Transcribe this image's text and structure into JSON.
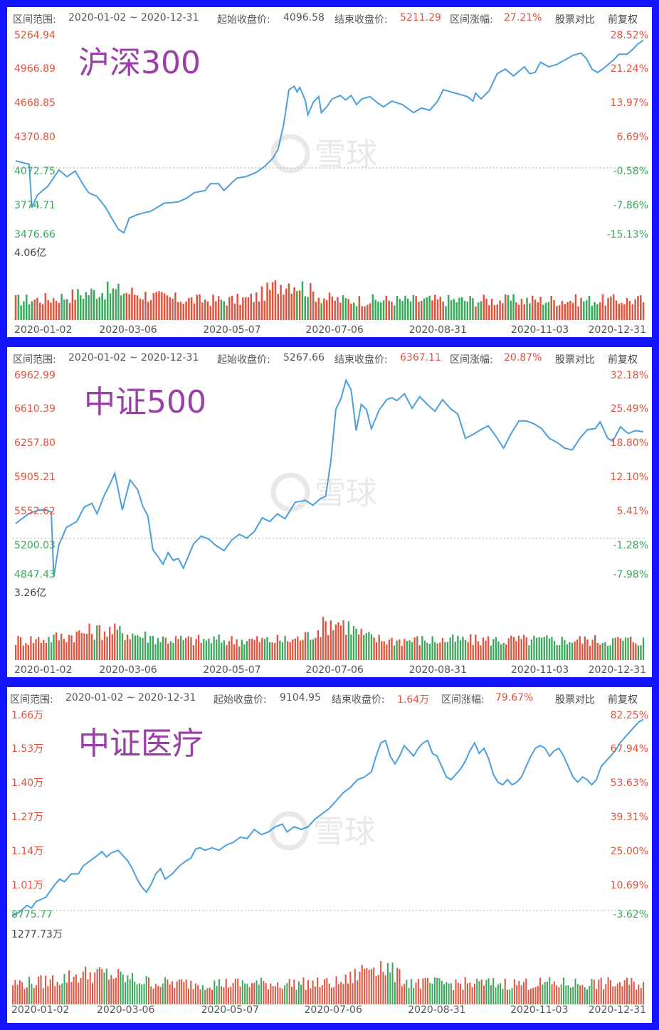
{
  "colors": {
    "up": "#e0533d",
    "down": "#3aa85a",
    "line": "#4a9fdf",
    "title": "#9b3fa8",
    "frame": "#1414ff",
    "label_gray": "#555555"
  },
  "header_labels": {
    "range": "区间范围:",
    "start": "起始收盘价:",
    "end": "结束收盘价:",
    "change": "区间涨幅:",
    "compare": "股票对比",
    "adjust": "前复权"
  },
  "watermark": "雪球",
  "chart_data": [
    {
      "type": "line",
      "title": "沪深300",
      "range": "2020-01-02 ~ 2020-12-31",
      "start_close": "4096.58",
      "end_close": "5211.29",
      "change": "27.21%",
      "y_ticks": [
        "5264.94",
        "4966.89",
        "4668.85",
        "4370.80",
        "4072.75",
        "3774.71",
        "3476.66"
      ],
      "y_ticks_right": [
        "28.52%",
        "21.24%",
        "13.97%",
        "6.69%",
        "-0.58%",
        "-7.86%",
        "-15.13%"
      ],
      "ylim": [
        3476.66,
        5264.94
      ],
      "base": 4096.58,
      "volume_max_label": "4.06亿",
      "x_ticks": [
        "2020-01-02",
        "2020-03-06",
        "2020-05-07",
        "2020-07-06",
        "2020-08-31",
        "2020-11-03",
        "2020-12-31"
      ],
      "keypoints": [
        [
          0,
          4160
        ],
        [
          3,
          4140
        ],
        [
          5,
          4130
        ],
        [
          6,
          3750
        ],
        [
          8,
          3860
        ],
        [
          12,
          3940
        ],
        [
          16,
          4080
        ],
        [
          19,
          4020
        ],
        [
          22,
          4070
        ],
        [
          25,
          3950
        ],
        [
          27,
          3880
        ],
        [
          30,
          3850
        ],
        [
          33,
          3760
        ],
        [
          36,
          3640
        ],
        [
          38,
          3560
        ],
        [
          40,
          3530
        ],
        [
          42,
          3660
        ],
        [
          45,
          3690
        ],
        [
          50,
          3720
        ],
        [
          55,
          3790
        ],
        [
          60,
          3800
        ],
        [
          63,
          3830
        ],
        [
          66,
          3880
        ],
        [
          70,
          3900
        ],
        [
          72,
          3960
        ],
        [
          75,
          3960
        ],
        [
          77,
          3900
        ],
        [
          80,
          3970
        ],
        [
          82,
          4010
        ],
        [
          85,
          4020
        ],
        [
          89,
          4060
        ],
        [
          92,
          4110
        ],
        [
          95,
          4180
        ],
        [
          97,
          4260
        ],
        [
          99,
          4470
        ],
        [
          101,
          4780
        ],
        [
          103,
          4810
        ],
        [
          104,
          4760
        ],
        [
          105,
          4800
        ],
        [
          107,
          4690
        ],
        [
          108,
          4560
        ],
        [
          110,
          4670
        ],
        [
          112,
          4720
        ],
        [
          113,
          4580
        ],
        [
          115,
          4630
        ],
        [
          117,
          4700
        ],
        [
          120,
          4730
        ],
        [
          122,
          4690
        ],
        [
          124,
          4730
        ],
        [
          126,
          4650
        ],
        [
          128,
          4700
        ],
        [
          131,
          4720
        ],
        [
          134,
          4660
        ],
        [
          136,
          4630
        ],
        [
          139,
          4680
        ],
        [
          143,
          4650
        ],
        [
          147,
          4580
        ],
        [
          150,
          4620
        ],
        [
          153,
          4600
        ],
        [
          156,
          4680
        ],
        [
          158,
          4780
        ],
        [
          161,
          4760
        ],
        [
          164,
          4740
        ],
        [
          167,
          4720
        ],
        [
          169,
          4680
        ],
        [
          170,
          4750
        ],
        [
          172,
          4700
        ],
        [
          175,
          4770
        ],
        [
          178,
          4920
        ],
        [
          181,
          4960
        ],
        [
          184,
          4900
        ],
        [
          186,
          4940
        ],
        [
          188,
          4980
        ],
        [
          190,
          4920
        ],
        [
          192,
          4930
        ],
        [
          194,
          5020
        ],
        [
          197,
          4980
        ],
        [
          200,
          5000
        ],
        [
          203,
          5040
        ],
        [
          206,
          5080
        ],
        [
          209,
          5100
        ],
        [
          211,
          5050
        ],
        [
          213,
          4960
        ],
        [
          215,
          4930
        ],
        [
          217,
          4960
        ],
        [
          219,
          5000
        ],
        [
          221,
          5040
        ],
        [
          223,
          5090
        ],
        [
          226,
          5090
        ],
        [
          228,
          5130
        ],
        [
          230,
          5180
        ],
        [
          232,
          5211.29
        ]
      ]
    },
    {
      "type": "line",
      "title": "中证500",
      "range": "2020-01-02 ~ 2020-12-31",
      "start_close": "5267.66",
      "end_close": "6367.11",
      "change": "20.87%",
      "y_ticks": [
        "6962.99",
        "6610.39",
        "6257.80",
        "5905.21",
        "5552.62",
        "5200.03",
        "4847.43"
      ],
      "y_ticks_right": [
        "32.18%",
        "25.49%",
        "18.80%",
        "12.10%",
        "5.41%",
        "-1.28%",
        "-7.98%"
      ],
      "ylim": [
        4847.43,
        6962.99
      ],
      "base": 5267.66,
      "volume_max_label": "3.26亿",
      "x_ticks": [
        "2020-01-02",
        "2020-03-06",
        "2020-05-07",
        "2020-07-06",
        "2020-08-31",
        "2020-11-03",
        "2020-12-31"
      ],
      "keypoints": [
        [
          0,
          5420
        ],
        [
          3,
          5480
        ],
        [
          5,
          5520
        ],
        [
          6,
          5530
        ],
        [
          9,
          5560
        ],
        [
          12,
          5560
        ],
        [
          14,
          5540
        ],
        [
          15,
          4870
        ],
        [
          17,
          5200
        ],
        [
          20,
          5380
        ],
        [
          24,
          5440
        ],
        [
          27,
          5590
        ],
        [
          30,
          5630
        ],
        [
          32,
          5520
        ],
        [
          35,
          5720
        ],
        [
          37,
          5820
        ],
        [
          39,
          5940
        ],
        [
          42,
          5560
        ],
        [
          45,
          5870
        ],
        [
          48,
          5770
        ],
        [
          50,
          5600
        ],
        [
          52,
          5500
        ],
        [
          54,
          5150
        ],
        [
          56,
          5080
        ],
        [
          58,
          5000
        ],
        [
          60,
          5120
        ],
        [
          62,
          5040
        ],
        [
          64,
          5060
        ],
        [
          66,
          4960
        ],
        [
          70,
          5210
        ],
        [
          73,
          5290
        ],
        [
          76,
          5260
        ],
        [
          79,
          5190
        ],
        [
          82,
          5140
        ],
        [
          85,
          5250
        ],
        [
          88,
          5310
        ],
        [
          91,
          5270
        ],
        [
          94,
          5340
        ],
        [
          97,
          5480
        ],
        [
          100,
          5440
        ],
        [
          103,
          5520
        ],
        [
          106,
          5470
        ],
        [
          110,
          5640
        ],
        [
          114,
          5660
        ],
        [
          117,
          5610
        ],
        [
          120,
          5680
        ],
        [
          122,
          5700
        ],
        [
          124,
          6060
        ],
        [
          126,
          6600
        ],
        [
          128,
          6710
        ],
        [
          130,
          6900
        ],
        [
          132,
          6800
        ],
        [
          134,
          6380
        ],
        [
          136,
          6650
        ],
        [
          138,
          6600
        ],
        [
          140,
          6400
        ],
        [
          143,
          6590
        ],
        [
          146,
          6700
        ],
        [
          148,
          6720
        ],
        [
          150,
          6690
        ],
        [
          153,
          6760
        ],
        [
          156,
          6610
        ],
        [
          159,
          6730
        ],
        [
          162,
          6650
        ],
        [
          165,
          6580
        ],
        [
          168,
          6700
        ],
        [
          171,
          6610
        ],
        [
          174,
          6550
        ],
        [
          177,
          6300
        ],
        [
          180,
          6340
        ],
        [
          183,
          6390
        ],
        [
          186,
          6430
        ],
        [
          189,
          6320
        ],
        [
          192,
          6200
        ],
        [
          195,
          6350
        ],
        [
          198,
          6480
        ],
        [
          201,
          6480
        ],
        [
          204,
          6450
        ],
        [
          207,
          6400
        ],
        [
          210,
          6300
        ],
        [
          213,
          6260
        ],
        [
          216,
          6200
        ],
        [
          219,
          6180
        ],
        [
          222,
          6300
        ],
        [
          225,
          6390
        ],
        [
          228,
          6400
        ],
        [
          230,
          6470
        ],
        [
          233,
          6300
        ],
        [
          235,
          6270
        ],
        [
          238,
          6420
        ],
        [
          241,
          6350
        ],
        [
          244,
          6380
        ],
        [
          247,
          6367.11
        ]
      ]
    },
    {
      "type": "line",
      "title": "中证医疗",
      "range": "2020-01-02 ~ 2020-12-31",
      "start_close": "9104.95",
      "end_close": "1.64万",
      "change": "79.67%",
      "y_ticks": [
        "1.66万",
        "1.53万",
        "1.40万",
        "1.27万",
        "1.14万",
        "1.01万",
        "8775.77"
      ],
      "y_ticks_right": [
        "82.25%",
        "67.94%",
        "53.63%",
        "39.31%",
        "25.00%",
        "10.69%",
        "-3.62%"
      ],
      "ylim": [
        8775.77,
        16600
      ],
      "base": 9104.95,
      "volume_max_label": "1277.73万",
      "x_ticks": [
        "2020-01-02",
        "2020-03-06",
        "2020-05-07",
        "2020-07-06",
        "2020-08-31",
        "2020-11-03",
        "2020-12-31"
      ],
      "keypoints": [
        [
          0,
          8900
        ],
        [
          3,
          9050
        ],
        [
          6,
          9300
        ],
        [
          8,
          9200
        ],
        [
          10,
          9450
        ],
        [
          14,
          9600
        ],
        [
          18,
          10100
        ],
        [
          20,
          10300
        ],
        [
          22,
          10200
        ],
        [
          25,
          10500
        ],
        [
          28,
          10500
        ],
        [
          30,
          10800
        ],
        [
          33,
          11000
        ],
        [
          36,
          11200
        ],
        [
          38,
          11350
        ],
        [
          40,
          11150
        ],
        [
          42,
          11300
        ],
        [
          45,
          11400
        ],
        [
          47,
          11200
        ],
        [
          49,
          11000
        ],
        [
          51,
          10700
        ],
        [
          53,
          10300
        ],
        [
          55,
          10000
        ],
        [
          57,
          9800
        ],
        [
          59,
          10100
        ],
        [
          61,
          10500
        ],
        [
          63,
          10700
        ],
        [
          65,
          10300
        ],
        [
          68,
          10500
        ],
        [
          71,
          10800
        ],
        [
          74,
          11000
        ],
        [
          76,
          11100
        ],
        [
          78,
          11450
        ],
        [
          80,
          11500
        ],
        [
          82,
          11400
        ],
        [
          85,
          11500
        ],
        [
          88,
          11400
        ],
        [
          91,
          11600
        ],
        [
          94,
          11700
        ],
        [
          97,
          11900
        ],
        [
          100,
          11850
        ],
        [
          103,
          12200
        ],
        [
          106,
          12000
        ],
        [
          109,
          12100
        ],
        [
          112,
          12300
        ],
        [
          115,
          12400
        ],
        [
          117,
          12100
        ],
        [
          120,
          12300
        ],
        [
          123,
          12200
        ],
        [
          126,
          12300
        ],
        [
          129,
          12600
        ],
        [
          132,
          12800
        ],
        [
          135,
          13000
        ],
        [
          138,
          13300
        ],
        [
          141,
          13600
        ],
        [
          144,
          13800
        ],
        [
          147,
          14100
        ],
        [
          150,
          14200
        ],
        [
          153,
          14400
        ],
        [
          155,
          15000
        ],
        [
          157,
          15500
        ],
        [
          159,
          15600
        ],
        [
          161,
          15000
        ],
        [
          163,
          14700
        ],
        [
          165,
          15000
        ],
        [
          167,
          15400
        ],
        [
          169,
          15200
        ],
        [
          171,
          15000
        ],
        [
          173,
          15300
        ],
        [
          175,
          15500
        ],
        [
          177,
          15600
        ],
        [
          179,
          15100
        ],
        [
          181,
          15000
        ],
        [
          183,
          14600
        ],
        [
          185,
          14200
        ],
        [
          187,
          14100
        ],
        [
          189,
          14300
        ],
        [
          191,
          14500
        ],
        [
          193,
          14800
        ],
        [
          195,
          15200
        ],
        [
          197,
          15500
        ],
        [
          199,
          15100
        ],
        [
          201,
          15300
        ],
        [
          203,
          14900
        ],
        [
          205,
          14300
        ],
        [
          207,
          14000
        ],
        [
          209,
          13900
        ],
        [
          211,
          14100
        ],
        [
          213,
          13900
        ],
        [
          215,
          14000
        ],
        [
          217,
          14200
        ],
        [
          219,
          14600
        ],
        [
          221,
          15000
        ],
        [
          223,
          15300
        ],
        [
          225,
          15400
        ],
        [
          227,
          15300
        ],
        [
          229,
          15000
        ],
        [
          231,
          15200
        ],
        [
          233,
          15300
        ],
        [
          235,
          15000
        ],
        [
          237,
          14600
        ],
        [
          239,
          14200
        ],
        [
          241,
          14000
        ],
        [
          243,
          14200
        ],
        [
          245,
          14100
        ],
        [
          247,
          13900
        ],
        [
          249,
          14100
        ],
        [
          251,
          14600
        ],
        [
          253,
          14800
        ],
        [
          255,
          15000
        ],
        [
          257,
          15200
        ],
        [
          259,
          15500
        ],
        [
          261,
          15700
        ],
        [
          263,
          15900
        ],
        [
          265,
          16100
        ],
        [
          267,
          16300
        ],
        [
          269,
          16400
        ]
      ]
    }
  ]
}
